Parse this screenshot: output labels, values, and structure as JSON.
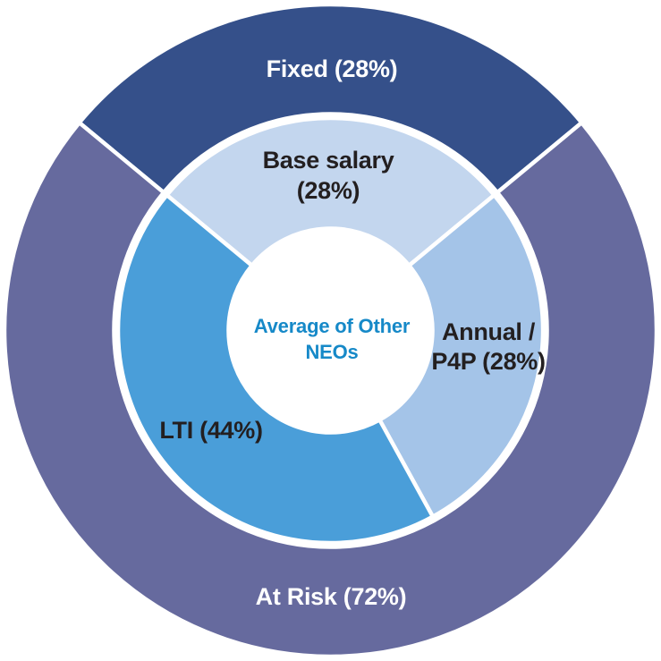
{
  "chart_data": {
    "type": "pie",
    "subtype": "nested-donut",
    "title": "",
    "center_label": "Average of Other\nNEOs",
    "center_text_color": "#1689c8",
    "divider_color": "#ffffff",
    "background_color": "#ffffff",
    "legend_position": "labels-on-slices",
    "rings": [
      {
        "name": "outer",
        "segments": [
          {
            "id": "fixed",
            "label": "Fixed (28%)",
            "value": 28,
            "color": "#35508a",
            "text_color": "#ffffff"
          },
          {
            "id": "at-risk",
            "label": "At Risk (72%)",
            "value": 72,
            "color": "#666a9e",
            "text_color": "#ffffff"
          }
        ]
      },
      {
        "name": "inner",
        "segments": [
          {
            "id": "base-salary",
            "label": "Base salary\n(28%)",
            "value": 28,
            "color": "#c3d6ee",
            "text_color": "#231f20"
          },
          {
            "id": "annual-p4p",
            "label": "Annual /\nP4P (28%)",
            "value": 28,
            "color": "#a4c4e8",
            "text_color": "#231f20"
          },
          {
            "id": "lti",
            "label": "LTI (44%)",
            "value": 44,
            "color": "#4a9ed9",
            "text_color": "#231f20"
          }
        ]
      }
    ]
  }
}
